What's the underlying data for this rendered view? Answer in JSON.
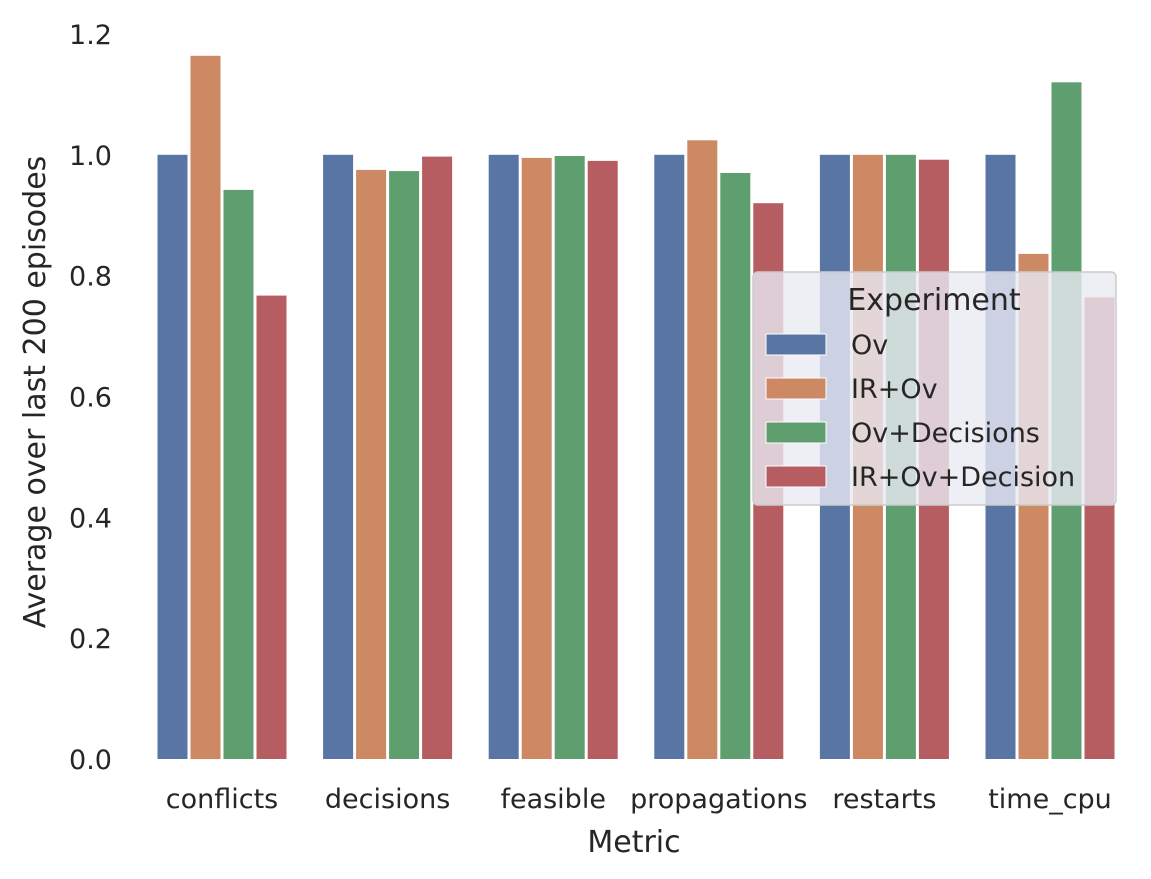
{
  "chart_data": {
    "type": "bar",
    "title": "",
    "xlabel": "Metric",
    "ylabel": "Average over last 200 episodes",
    "ylim": [
      0,
      1.2
    ],
    "yticks": [
      "0.0",
      "0.2",
      "0.4",
      "0.6",
      "0.8",
      "1.0",
      "1.2"
    ],
    "grid": false,
    "legend_title": "Experiment",
    "legend_position": "center-right",
    "categories": [
      "conflicts",
      "decisions",
      "feasible",
      "propagations",
      "restarts",
      "time_cpu"
    ],
    "series": [
      {
        "name": "Ov",
        "color": "#5875a4",
        "values": [
          1.0,
          1.0,
          1.0,
          1.0,
          1.0,
          1.0
        ]
      },
      {
        "name": "IR+Ov",
        "color": "#cc8963",
        "values": [
          1.164,
          0.975,
          0.995,
          1.024,
          1.0,
          0.836
        ]
      },
      {
        "name": "Ov+Decisions",
        "color": "#5f9e6e",
        "values": [
          0.942,
          0.973,
          0.998,
          0.97,
          1.0,
          1.12
        ]
      },
      {
        "name": "IR+Ov+Decision",
        "color": "#b55d60",
        "values": [
          0.767,
          0.997,
          0.99,
          0.92,
          0.992,
          0.764
        ]
      }
    ]
  }
}
